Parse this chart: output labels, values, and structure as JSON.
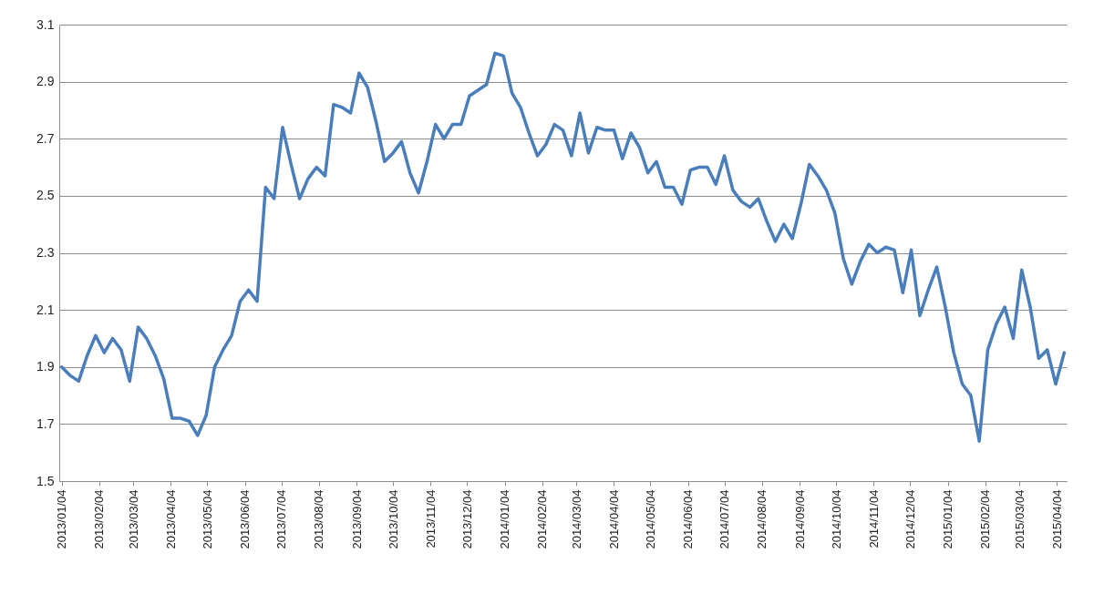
{
  "chart_data": {
    "type": "line",
    "x": [
      "2013-01-04",
      "2013-01-11",
      "2013-01-18",
      "2013-01-25",
      "2013-02-01",
      "2013-02-08",
      "2013-02-15",
      "2013-02-22",
      "2013-03-01",
      "2013-03-08",
      "2013-03-15",
      "2013-03-22",
      "2013-03-29",
      "2013-04-05",
      "2013-04-12",
      "2013-04-19",
      "2013-04-26",
      "2013-05-03",
      "2013-05-10",
      "2013-05-17",
      "2013-05-24",
      "2013-05-31",
      "2013-06-07",
      "2013-06-14",
      "2013-06-21",
      "2013-06-28",
      "2013-07-05",
      "2013-07-12",
      "2013-07-19",
      "2013-07-26",
      "2013-08-02",
      "2013-08-09",
      "2013-08-16",
      "2013-08-23",
      "2013-08-30",
      "2013-09-06",
      "2013-09-13",
      "2013-09-20",
      "2013-09-27",
      "2013-10-04",
      "2013-10-11",
      "2013-10-18",
      "2013-10-25",
      "2013-11-01",
      "2013-11-08",
      "2013-11-15",
      "2013-11-22",
      "2013-11-29",
      "2013-12-06",
      "2013-12-13",
      "2013-12-20",
      "2013-12-27",
      "2014-01-03",
      "2014-01-10",
      "2014-01-17",
      "2014-01-24",
      "2014-01-31",
      "2014-02-07",
      "2014-02-14",
      "2014-02-21",
      "2014-02-28",
      "2014-03-07",
      "2014-03-14",
      "2014-03-21",
      "2014-03-28",
      "2014-04-04",
      "2014-04-11",
      "2014-04-18",
      "2014-04-25",
      "2014-05-02",
      "2014-05-09",
      "2014-05-16",
      "2014-05-23",
      "2014-05-30",
      "2014-06-06",
      "2014-06-13",
      "2014-06-20",
      "2014-06-27",
      "2014-07-04",
      "2014-07-11",
      "2014-07-18",
      "2014-07-25",
      "2014-08-01",
      "2014-08-08",
      "2014-08-15",
      "2014-08-22",
      "2014-08-29",
      "2014-09-05",
      "2014-09-12",
      "2014-09-19",
      "2014-09-26",
      "2014-10-03",
      "2014-10-10",
      "2014-10-17",
      "2014-10-24",
      "2014-10-31",
      "2014-11-07",
      "2014-11-14",
      "2014-11-21",
      "2014-11-28",
      "2014-12-05",
      "2014-12-12",
      "2014-12-19",
      "2014-12-26",
      "2015-01-02",
      "2015-01-09",
      "2015-01-16",
      "2015-01-23",
      "2015-01-30",
      "2015-02-06",
      "2015-02-13",
      "2015-02-20",
      "2015-02-27",
      "2015-03-06",
      "2015-03-13",
      "2015-03-20",
      "2015-03-27",
      "2015-04-03",
      "2015-04-10"
    ],
    "series": [
      {
        "color": "#4a7ebb",
        "values": [
          1.9,
          1.87,
          1.85,
          1.94,
          2.01,
          1.95,
          2.0,
          1.96,
          1.85,
          2.04,
          2.0,
          1.94,
          1.86,
          1.72,
          1.72,
          1.71,
          1.66,
          1.73,
          1.9,
          1.96,
          2.01,
          2.13,
          2.17,
          2.13,
          2.53,
          2.49,
          2.74,
          2.61,
          2.49,
          2.56,
          2.6,
          2.57,
          2.82,
          2.81,
          2.79,
          2.93,
          2.88,
          2.76,
          2.62,
          2.65,
          2.69,
          2.58,
          2.51,
          2.62,
          2.75,
          2.7,
          2.75,
          2.75,
          2.85,
          2.87,
          2.89,
          3.0,
          2.99,
          2.86,
          2.81,
          2.72,
          2.64,
          2.68,
          2.75,
          2.73,
          2.64,
          2.79,
          2.65,
          2.74,
          2.73,
          2.73,
          2.63,
          2.72,
          2.67,
          2.58,
          2.62,
          2.53,
          2.53,
          2.47,
          2.59,
          2.6,
          2.6,
          2.54,
          2.64,
          2.52,
          2.48,
          2.46,
          2.49,
          2.41,
          2.34,
          2.4,
          2.35,
          2.47,
          2.61,
          2.57,
          2.52,
          2.44,
          2.28,
          2.19,
          2.27,
          2.33,
          2.3,
          2.32,
          2.31,
          2.16,
          2.31,
          2.08,
          2.17,
          2.25,
          2.11,
          1.95,
          1.84,
          1.8,
          1.64,
          1.96,
          2.05,
          2.11,
          2.0,
          2.24,
          2.11,
          1.93,
          1.96,
          1.84,
          1.95
        ]
      }
    ],
    "xlim": [
      "2013-01-02",
      "2015-04-12"
    ],
    "xticks": [
      {
        "value": "2013-01-04",
        "label": "2013/01/04"
      },
      {
        "value": "2013-02-04",
        "label": "2013/02/04"
      },
      {
        "value": "2013-03-04",
        "label": "2013/03/04"
      },
      {
        "value": "2013-04-04",
        "label": "2013/04/04"
      },
      {
        "value": "2013-05-04",
        "label": "2013/05/04"
      },
      {
        "value": "2013-06-04",
        "label": "2013/06/04"
      },
      {
        "value": "2013-07-04",
        "label": "2013/07/04"
      },
      {
        "value": "2013-08-04",
        "label": "2013/08/04"
      },
      {
        "value": "2013-09-04",
        "label": "2013/09/04"
      },
      {
        "value": "2013-10-04",
        "label": "2013/10/04"
      },
      {
        "value": "2013-11-04",
        "label": "2013/11/04"
      },
      {
        "value": "2013-12-04",
        "label": "2013/12/04"
      },
      {
        "value": "2014-01-04",
        "label": "2014/01/04"
      },
      {
        "value": "2014-02-04",
        "label": "2014/02/04"
      },
      {
        "value": "2014-03-04",
        "label": "2014/03/04"
      },
      {
        "value": "2014-04-04",
        "label": "2014/04/04"
      },
      {
        "value": "2014-05-04",
        "label": "2014/05/04"
      },
      {
        "value": "2014-06-04",
        "label": "2014/06/04"
      },
      {
        "value": "2014-07-04",
        "label": "2014/07/04"
      },
      {
        "value": "2014-08-04",
        "label": "2014/08/04"
      },
      {
        "value": "2014-09-04",
        "label": "2014/09/04"
      },
      {
        "value": "2014-10-04",
        "label": "2014/10/04"
      },
      {
        "value": "2014-11-04",
        "label": "2014/11/04"
      },
      {
        "value": "2014-12-04",
        "label": "2014/12/04"
      },
      {
        "value": "2015-01-04",
        "label": "2015/01/04"
      },
      {
        "value": "2015-02-04",
        "label": "2015/02/04"
      },
      {
        "value": "2015-03-04",
        "label": "2015/03/04"
      },
      {
        "value": "2015-04-04",
        "label": "2015/04/04"
      }
    ],
    "ylim": [
      1.5,
      3.1
    ],
    "yticks": [
      1.5,
      1.7,
      1.9,
      2.1,
      2.3,
      2.5,
      2.7,
      2.9,
      3.1
    ],
    "grid": "y"
  }
}
